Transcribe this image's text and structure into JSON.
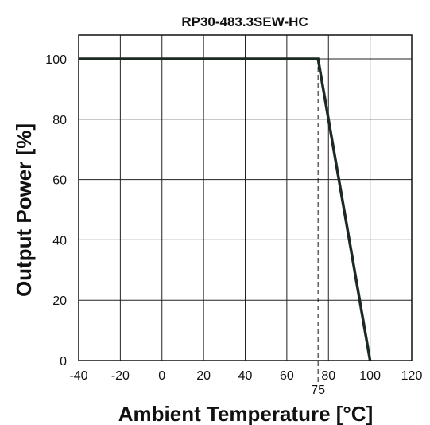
{
  "chart_data": {
    "type": "line",
    "title": "RP30-483.3SEW-HC",
    "xlabel": "Ambient Temperature [°C]",
    "ylabel": "Output Power [%]",
    "xlim": [
      -40,
      120
    ],
    "ylim": [
      0,
      100
    ],
    "x_ticks": [
      "-40",
      "-20",
      "0",
      "20",
      "40",
      "60",
      "80",
      "100",
      "120"
    ],
    "y_ticks": [
      "0",
      "20",
      "40",
      "60",
      "80",
      "100"
    ],
    "grid": true,
    "series": [
      {
        "x": [
          -40,
          75,
          100
        ],
        "y": [
          100,
          100,
          0
        ],
        "color": "#1c2a22"
      }
    ],
    "annotations": [
      {
        "text": "75",
        "x": 75,
        "style": "dashed-vertical"
      }
    ]
  }
}
